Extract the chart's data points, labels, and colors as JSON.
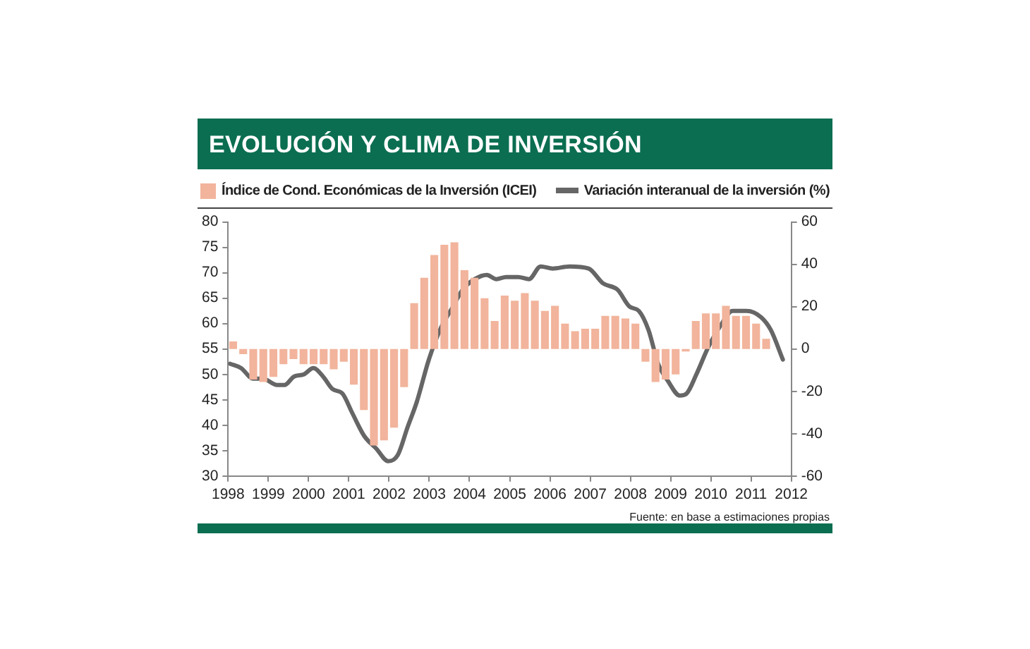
{
  "chart_data": {
    "type": "bar",
    "title": "EVOLUCIÓN Y CLIMA DE INVERSIÓN",
    "annotations": [
      "Fuente: en base a estimaciones propias"
    ],
    "legend": "top",
    "xlim": [
      1998,
      2012
    ],
    "xticks": [
      1998,
      1999,
      2000,
      2001,
      2002,
      2003,
      2004,
      2005,
      2006,
      2007,
      2008,
      2009,
      2010,
      2011,
      2012
    ],
    "ylim": [
      30,
      80
    ],
    "yticks": [
      30,
      35,
      40,
      45,
      50,
      55,
      60,
      65,
      70,
      75,
      80
    ],
    "y2lim": [
      -60,
      60
    ],
    "y2ticks": [
      -60,
      -40,
      -20,
      0,
      20,
      40,
      60
    ],
    "grid": false,
    "series": [
      {
        "name": "Índice de Cond. Económicas de la Inversión (ICEI)",
        "color": "#f2b49c",
        "x": [
          1998.125,
          1998.375,
          1998.625,
          1998.875,
          1999.125,
          1999.375,
          1999.625,
          1999.875,
          2000.125,
          2000.375,
          2000.625,
          2000.875,
          2001.125,
          2001.375,
          2001.625,
          2001.875,
          2002.125,
          2002.375,
          2002.625,
          2002.875,
          2003.125,
          2003.375,
          2003.625,
          2003.875,
          2004.125,
          2004.375,
          2004.625,
          2004.875,
          2005.125,
          2005.375,
          2005.625,
          2005.875,
          2006.125,
          2006.375,
          2006.625,
          2006.875,
          2007.125,
          2007.375,
          2007.625,
          2007.875,
          2008.125,
          2008.375,
          2008.625,
          2008.875,
          2009.125,
          2009.375,
          2009.625,
          2009.875,
          2010.125,
          2010.375,
          2010.625,
          2010.875,
          2011.125,
          2011.375
        ],
        "base": [
          55,
          55,
          55,
          55,
          55,
          55,
          55,
          55,
          55,
          55,
          55,
          55,
          55,
          55,
          55,
          55,
          55,
          55,
          55,
          55,
          55,
          55,
          55,
          55,
          55,
          55,
          55,
          55,
          55,
          55,
          55,
          55,
          55,
          55,
          55,
          55,
          55,
          55,
          55,
          55,
          55,
          55,
          55,
          55,
          55,
          55,
          55,
          55,
          55,
          55,
          55,
          55,
          55,
          55
        ],
        "values": [
          1.5,
          -1,
          -6,
          -6.5,
          -5.5,
          -3,
          -2,
          -3,
          -3,
          -3,
          -4,
          -2.5,
          -7,
          -12,
          -19,
          -18,
          -15.5,
          -7.5,
          9,
          14,
          18.5,
          20.5,
          21,
          15.5,
          14,
          10,
          5.5,
          10.5,
          9.5,
          11,
          9.5,
          7.5,
          8.5,
          5,
          3.5,
          4,
          4,
          6.5,
          6.5,
          6,
          5,
          -2.5,
          -6.5,
          -6,
          -5,
          -0.5,
          5.5,
          7,
          7,
          8.5,
          6.5,
          6.5,
          5,
          2
        ]
      },
      {
        "name": "Variación interanual de la inversión (%)",
        "type": "line",
        "axis": "y2",
        "color": "#666666",
        "x": [
          1998.05,
          1998.32,
          1998.62,
          1998.86,
          1999.22,
          1999.4,
          1999.64,
          1999.88,
          2000.12,
          2000.36,
          2000.6,
          2000.84,
          2001.08,
          2001.38,
          2001.68,
          2001.98,
          2002.22,
          2002.46,
          2002.69,
          2002.99,
          2003.29,
          2003.59,
          2003.83,
          2004.13,
          2004.43,
          2004.67,
          2004.91,
          2005.21,
          2005.48,
          2005.77,
          2006.07,
          2006.49,
          2006.96,
          2007.32,
          2007.68,
          2007.98,
          2008.21,
          2008.45,
          2008.69,
          2008.93,
          2009.23,
          2009.4,
          2009.64,
          2009.94,
          2010.24,
          2010.54,
          2010.89,
          2011.25,
          2011.49,
          2011.79
        ],
        "values": [
          -7,
          -9,
          -14,
          -14,
          -17,
          -17,
          -13,
          -12,
          -9,
          -13,
          -19,
          -21,
          -30,
          -41,
          -47,
          -53,
          -50,
          -37,
          -25,
          -5,
          10,
          20,
          28,
          33,
          35,
          33,
          34,
          34,
          33,
          39,
          38,
          39,
          38,
          31,
          28,
          20,
          18,
          9,
          -7,
          -15,
          -22,
          -21,
          -12,
          1,
          11,
          18,
          18,
          15,
          9,
          -5
        ]
      }
    ]
  }
}
